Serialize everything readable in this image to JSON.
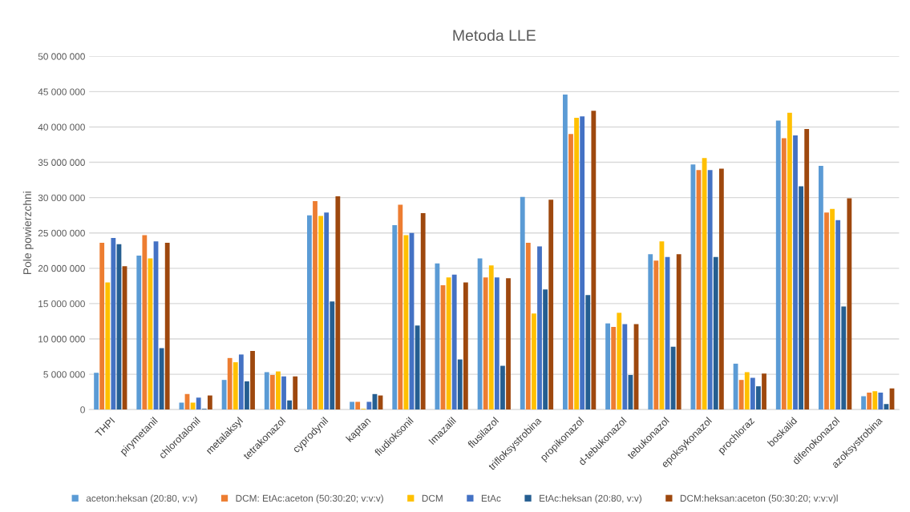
{
  "chart_data": {
    "type": "bar",
    "title": "Metoda LLE",
    "ylabel": "Pole powierzchni",
    "categories": [
      "THPI",
      "pirymetanil",
      "chlorotalonil",
      "metalaksyl",
      "tetrakonazol",
      "cyprodynil",
      "kaptan",
      "fludioksonil",
      "Imazalil",
      "flusilazol",
      "trifloksystrobina",
      "propikonazol",
      "d-tebukonazol",
      "tebukonazol",
      "epoksykonazol",
      "prochloraz",
      "boskalid",
      "difenokonazol",
      "azoksystrobina"
    ],
    "series": [
      {
        "name": "aceton:heksan (20:80, v:v)",
        "color": "#5b9bd5",
        "values": [
          5200000,
          21800000,
          1000000,
          4200000,
          5300000,
          27500000,
          1100000,
          26100000,
          20700000,
          21400000,
          30100000,
          44600000,
          12200000,
          22000000,
          34700000,
          6500000,
          40900000,
          34500000,
          1900000
        ]
      },
      {
        "name": "DCM: EtAc:aceton (50:30:20; v:v:v)",
        "color": "#ed7d31",
        "values": [
          23600000,
          24700000,
          2200000,
          7300000,
          4900000,
          29500000,
          1100000,
          29000000,
          17600000,
          18700000,
          23600000,
          39000000,
          11700000,
          21100000,
          33900000,
          4200000,
          38400000,
          27900000,
          2400000
        ]
      },
      {
        "name": "DCM",
        "color": "#ffc000",
        "values": [
          18000000,
          21400000,
          1000000,
          6700000,
          5400000,
          27400000,
          100000,
          24700000,
          18700000,
          20400000,
          13600000,
          41300000,
          13700000,
          23800000,
          35600000,
          5300000,
          42000000,
          28400000,
          2600000
        ]
      },
      {
        "name": "EtAc",
        "color": "#4472c4",
        "values": [
          24300000,
          23800000,
          1700000,
          7800000,
          4700000,
          27900000,
          1100000,
          25000000,
          19100000,
          18700000,
          23100000,
          41500000,
          12100000,
          21600000,
          33900000,
          4500000,
          38800000,
          26800000,
          2400000
        ]
      },
      {
        "name": "EtAc:heksan (20:80, v:v)",
        "color": "#255e91",
        "values": [
          23400000,
          8700000,
          100000,
          4000000,
          1300000,
          15300000,
          2200000,
          11900000,
          7100000,
          6200000,
          17000000,
          16200000,
          4900000,
          8900000,
          21600000,
          3300000,
          31600000,
          14600000,
          800000
        ]
      },
      {
        "name": "DCM:heksan:aceton (50:30:20; v:v:v)l",
        "color": "#9e480e",
        "values": [
          20300000,
          23600000,
          2000000,
          8300000,
          4700000,
          30200000,
          2000000,
          27800000,
          18000000,
          18600000,
          29700000,
          42300000,
          12100000,
          22000000,
          34100000,
          5100000,
          39700000,
          29900000,
          3000000
        ]
      }
    ],
    "ylim": [
      0,
      50000000
    ],
    "yticks": [
      {
        "value": 0,
        "label": "0"
      },
      {
        "value": 5000000,
        "label": "5 000 000"
      },
      {
        "value": 10000000,
        "label": "10 000 000"
      },
      {
        "value": 15000000,
        "label": "15 000 000"
      },
      {
        "value": 20000000,
        "label": "20 000 000"
      },
      {
        "value": 25000000,
        "label": "25 000 000"
      },
      {
        "value": 30000000,
        "label": "30 000 000"
      },
      {
        "value": 35000000,
        "label": "35 000 000"
      },
      {
        "value": 40000000,
        "label": "40 000 000"
      },
      {
        "value": 45000000,
        "label": "45 000 000"
      },
      {
        "value": 50000000,
        "label": "50 000 000"
      }
    ],
    "grid": "y",
    "legend": "bottom"
  }
}
